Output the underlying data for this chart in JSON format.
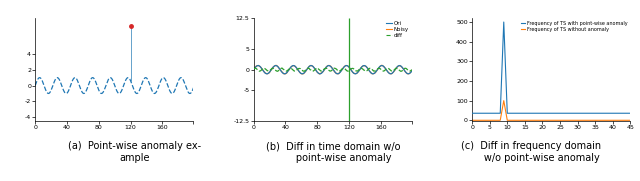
{
  "fig_width": 6.4,
  "fig_height": 1.81,
  "dpi": 100,
  "n_points": 200,
  "anomaly_index": 120,
  "anomaly_value": 7.5,
  "sine_amplitude": 1.0,
  "sine_periods": 9,
  "panel_a": {
    "xlim": [
      0,
      199
    ],
    "ylim": [
      -4.5,
      8.5
    ],
    "xticks": [
      0,
      40,
      80,
      120,
      160,
      199
    ],
    "xticklabels": [
      "0",
      "40",
      "80",
      "120",
      "160",
      ""
    ],
    "yticks": [
      -4,
      -2,
      0,
      2,
      4
    ],
    "yticklabels": [
      "-4",
      "-2",
      "0",
      "2",
      "4"
    ],
    "sine_color": "#1f77b4",
    "anomaly_color": "#d62728",
    "line_style": "--",
    "line_width": 0.9
  },
  "panel_b": {
    "ylim": [
      -12.5,
      12.5
    ],
    "xlim": [
      0,
      199
    ],
    "xticks": [
      0,
      40,
      80,
      120,
      160,
      199
    ],
    "xticklabels": [
      "0",
      "40",
      "80",
      "120",
      "160",
      ""
    ],
    "yticks": [
      -12.5,
      -5,
      0,
      5,
      12.5
    ],
    "yticklabels": [
      "-12.5",
      "-5",
      "0",
      "5",
      "12.5"
    ],
    "orig_color": "#1f77b4",
    "noisy_color": "#ff7f0e",
    "diff_color": "#2ca02c",
    "legend_labels": [
      "Ori",
      "Noisy",
      "diff"
    ],
    "line_width": 0.9,
    "anomaly_spike_height": 12.5,
    "diff_amplitude": 0.35,
    "diff_freq_ratio": 2.0,
    "diff_phase": 0.5
  },
  "panel_c": {
    "ylim": [
      -5,
      520
    ],
    "xlim": [
      0,
      45
    ],
    "xticks": [
      0,
      5,
      10,
      15,
      20,
      25,
      30,
      35,
      40,
      45
    ],
    "xticklabels": [
      "0",
      "5",
      "10",
      "15",
      "20",
      "25",
      "30",
      "35",
      "40",
      "45"
    ],
    "yticks": [
      0,
      100,
      200,
      300,
      400,
      500
    ],
    "yticklabels": [
      "0",
      "100",
      "200",
      "300",
      "400",
      "500"
    ],
    "with_anomaly_color": "#1f77b4",
    "without_anomaly_color": "#ff7f0e",
    "legend_labels": [
      "Frequency of TS with point-wise anomaly",
      "Frequency of TS without anomaly"
    ],
    "line_width": 0.8
  },
  "caption_a": "(a)  Point-wise anomaly ex-\nample",
  "caption_b": "(b)  Diff in time domain w/o\n       point-wise anomaly",
  "caption_c": "(c)  Diff in frequency domain\n       w/o point-wise anomaly",
  "caption_fontsize": 7.0,
  "background_color": "#ffffff",
  "tick_fontsize": 4.5,
  "legend_fontsize_b": 4.0,
  "legend_fontsize_c": 3.5
}
